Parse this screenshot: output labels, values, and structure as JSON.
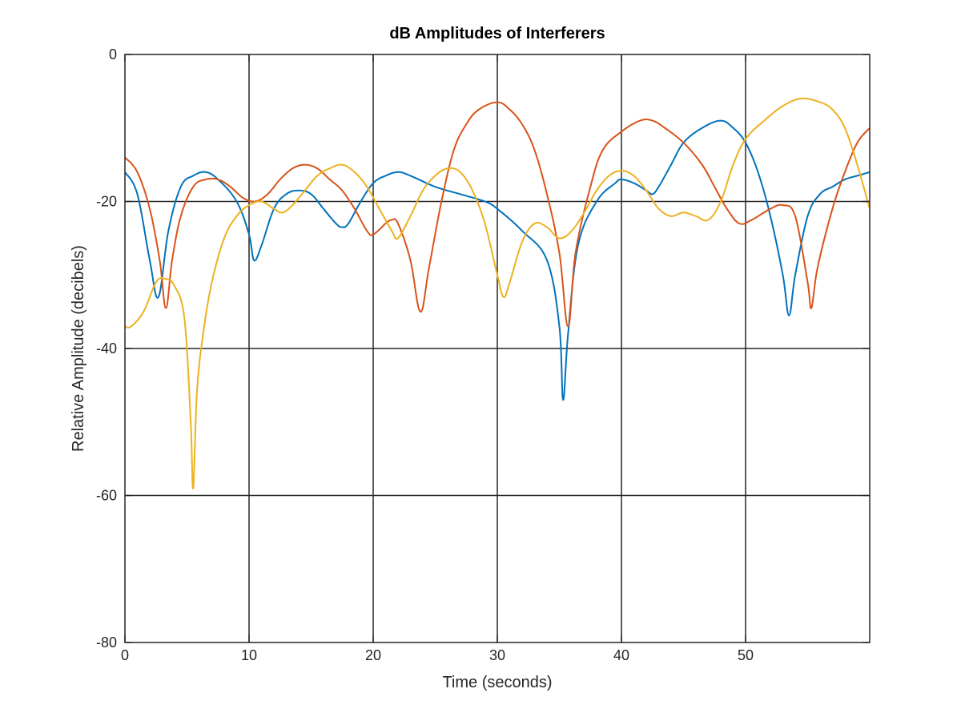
{
  "chart_data": {
    "type": "line",
    "title": "dB Amplitudes of Interferers",
    "xlabel": "Time (seconds)",
    "ylabel": "Relative Amplitude (decibels)",
    "xlim": [
      0,
      60
    ],
    "ylim": [
      -80,
      0
    ],
    "xticks": [
      0,
      10,
      20,
      30,
      40,
      50
    ],
    "yticks": [
      0,
      -20,
      -40,
      -60,
      -80
    ],
    "grid": true,
    "legend": "none",
    "series": [
      {
        "color": "#0072BD",
        "points": [
          [
            0,
            -16
          ],
          [
            1,
            -19
          ],
          [
            2,
            -28
          ],
          [
            2.7,
            -33
          ],
          [
            3.5,
            -24
          ],
          [
            4.5,
            -18
          ],
          [
            5.5,
            -16.5
          ],
          [
            6.5,
            -16
          ],
          [
            7.5,
            -17
          ],
          [
            9,
            -20
          ],
          [
            10,
            -24.5
          ],
          [
            10.4,
            -28
          ],
          [
            11,
            -26
          ],
          [
            12,
            -21
          ],
          [
            13,
            -19
          ],
          [
            14,
            -18.5
          ],
          [
            15,
            -19
          ],
          [
            16,
            -21
          ],
          [
            17,
            -23
          ],
          [
            17.5,
            -23.5
          ],
          [
            18,
            -23
          ],
          [
            19,
            -20
          ],
          [
            20,
            -17.5
          ],
          [
            21,
            -16.5
          ],
          [
            22,
            -16
          ],
          [
            23,
            -16.5
          ],
          [
            25,
            -18
          ],
          [
            27,
            -19
          ],
          [
            29,
            -20
          ],
          [
            30,
            -21
          ],
          [
            32,
            -24
          ],
          [
            34,
            -28
          ],
          [
            35,
            -37
          ],
          [
            35.3,
            -47
          ],
          [
            35.7,
            -38
          ],
          [
            36.5,
            -26
          ],
          [
            38,
            -20
          ],
          [
            39.5,
            -17.5
          ],
          [
            40,
            -17
          ],
          [
            41,
            -17.5
          ],
          [
            42,
            -18.5
          ],
          [
            42.5,
            -19
          ],
          [
            43,
            -18
          ],
          [
            44,
            -15
          ],
          [
            45,
            -12
          ],
          [
            46.5,
            -10
          ],
          [
            48,
            -9
          ],
          [
            49,
            -10
          ],
          [
            50,
            -12
          ],
          [
            51,
            -16
          ],
          [
            52,
            -22
          ],
          [
            53,
            -30
          ],
          [
            53.5,
            -35.5
          ],
          [
            54,
            -30
          ],
          [
            55,
            -22
          ],
          [
            56,
            -19
          ],
          [
            57,
            -18
          ],
          [
            58,
            -17
          ],
          [
            59,
            -16.5
          ],
          [
            60,
            -16
          ]
        ]
      },
      {
        "color": "#D95319",
        "points": [
          [
            0,
            -14
          ],
          [
            1,
            -16
          ],
          [
            2,
            -21
          ],
          [
            2.8,
            -28
          ],
          [
            3.3,
            -34.5
          ],
          [
            3.8,
            -28
          ],
          [
            4.5,
            -22
          ],
          [
            5.5,
            -18
          ],
          [
            6.5,
            -17
          ],
          [
            7.5,
            -17
          ],
          [
            8.5,
            -18
          ],
          [
            9.5,
            -19.5
          ],
          [
            10.5,
            -20
          ],
          [
            11.5,
            -19
          ],
          [
            12.5,
            -17
          ],
          [
            13.5,
            -15.5
          ],
          [
            14.5,
            -15
          ],
          [
            15.5,
            -15.5
          ],
          [
            16.5,
            -17
          ],
          [
            17.5,
            -18.5
          ],
          [
            18.5,
            -21
          ],
          [
            19.5,
            -24
          ],
          [
            20,
            -24.5
          ],
          [
            21,
            -23
          ],
          [
            21.5,
            -22.5
          ],
          [
            22,
            -23
          ],
          [
            23,
            -28
          ],
          [
            23.8,
            -35
          ],
          [
            24.5,
            -29
          ],
          [
            25.5,
            -20
          ],
          [
            26.5,
            -13
          ],
          [
            27.5,
            -9.5
          ],
          [
            28.5,
            -7.5
          ],
          [
            30,
            -6.5
          ],
          [
            31,
            -7.5
          ],
          [
            32,
            -9.5
          ],
          [
            33,
            -13
          ],
          [
            34,
            -19
          ],
          [
            35,
            -27
          ],
          [
            35.7,
            -37
          ],
          [
            36.3,
            -27
          ],
          [
            37.5,
            -18
          ],
          [
            38.5,
            -13
          ],
          [
            40,
            -10.5
          ],
          [
            41.5,
            -9
          ],
          [
            42.5,
            -9
          ],
          [
            43.5,
            -10
          ],
          [
            45,
            -12
          ],
          [
            46.5,
            -15
          ],
          [
            47.5,
            -18
          ],
          [
            48.5,
            -21
          ],
          [
            49.5,
            -23
          ],
          [
            50.5,
            -22.5
          ],
          [
            52,
            -21
          ],
          [
            53,
            -20.5
          ],
          [
            54,
            -22
          ],
          [
            55,
            -31
          ],
          [
            55.3,
            -34.5
          ],
          [
            55.8,
            -29
          ],
          [
            57,
            -21
          ],
          [
            58,
            -16
          ],
          [
            59,
            -12
          ],
          [
            60,
            -10
          ]
        ]
      },
      {
        "color": "#EDB120",
        "points": [
          [
            0,
            -37
          ],
          [
            0.5,
            -37
          ],
          [
            1.5,
            -35
          ],
          [
            2.5,
            -31
          ],
          [
            3.2,
            -30.5
          ],
          [
            4,
            -31.5
          ],
          [
            4.8,
            -36
          ],
          [
            5.3,
            -50
          ],
          [
            5.5,
            -59
          ],
          [
            5.8,
            -46
          ],
          [
            6.3,
            -38
          ],
          [
            7,
            -31
          ],
          [
            8,
            -25
          ],
          [
            9,
            -22
          ],
          [
            10,
            -20.5
          ],
          [
            11,
            -20
          ],
          [
            12,
            -21
          ],
          [
            12.7,
            -21.5
          ],
          [
            13.5,
            -20.5
          ],
          [
            14.5,
            -18.5
          ],
          [
            15.5,
            -16.5
          ],
          [
            16.5,
            -15.5
          ],
          [
            17.5,
            -15
          ],
          [
            18.5,
            -16
          ],
          [
            19.5,
            -18
          ],
          [
            20.5,
            -21
          ],
          [
            21.5,
            -24
          ],
          [
            22,
            -25
          ],
          [
            23,
            -22
          ],
          [
            24,
            -18.5
          ],
          [
            25,
            -16.5
          ],
          [
            26,
            -15.5
          ],
          [
            27,
            -16
          ],
          [
            28,
            -18.5
          ],
          [
            29,
            -23
          ],
          [
            30,
            -30
          ],
          [
            30.5,
            -33
          ],
          [
            31,
            -31
          ],
          [
            32,
            -25.5
          ],
          [
            33,
            -23
          ],
          [
            34,
            -23.5
          ],
          [
            35,
            -25
          ],
          [
            36,
            -24
          ],
          [
            37,
            -21.5
          ],
          [
            38,
            -18.5
          ],
          [
            39,
            -16.5
          ],
          [
            40,
            -15.8
          ],
          [
            41,
            -16.5
          ],
          [
            42,
            -18.5
          ],
          [
            43,
            -21
          ],
          [
            44,
            -22
          ],
          [
            45,
            -21.5
          ],
          [
            46,
            -22
          ],
          [
            47,
            -22.5
          ],
          [
            48,
            -20
          ],
          [
            49,
            -15
          ],
          [
            50,
            -11.5
          ],
          [
            51.5,
            -9
          ],
          [
            53,
            -7
          ],
          [
            54.5,
            -6
          ],
          [
            56,
            -6.5
          ],
          [
            57,
            -7.5
          ],
          [
            58,
            -10
          ],
          [
            59,
            -15
          ],
          [
            60,
            -21
          ]
        ]
      }
    ]
  }
}
